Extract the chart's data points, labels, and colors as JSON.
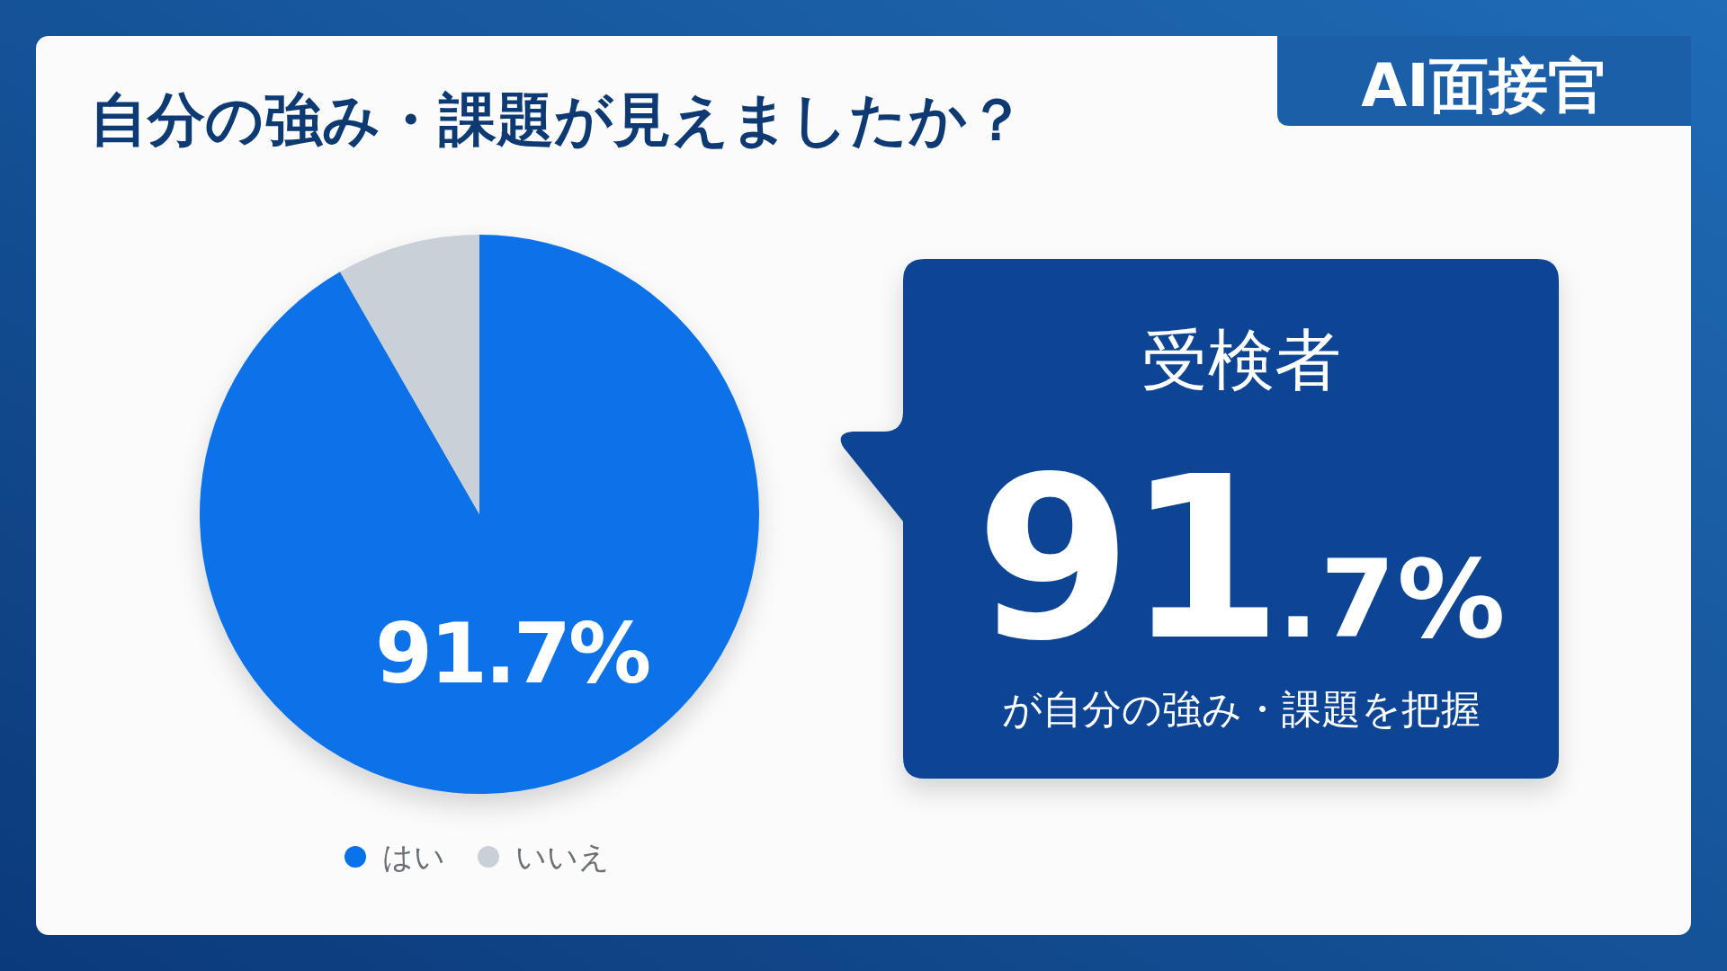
{
  "chart_data": {
    "type": "pie",
    "title": "自分の強み・課題が見えましたか？",
    "categories": [
      "はい",
      "いいえ"
    ],
    "values": [
      91.7,
      8.3
    ],
    "colors": [
      "#0a72e8",
      "#c9d0d8"
    ],
    "value_labels": [
      "91.7%",
      null
    ],
    "legend": "bottom",
    "annotations": [
      "AI面接官",
      "受検者",
      "91.7%",
      "が自分の強み・課題を把握"
    ]
  }
}
